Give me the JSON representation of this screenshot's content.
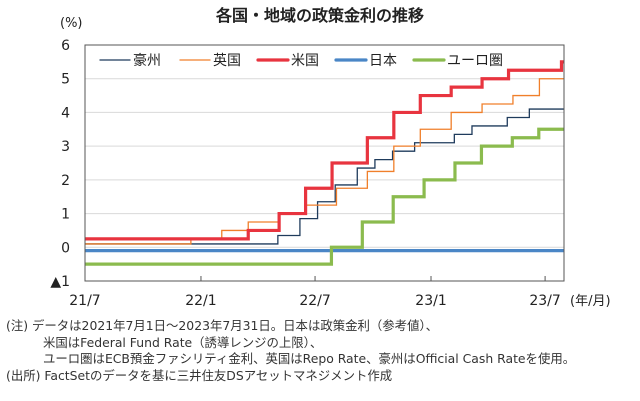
{
  "chart_data": {
    "type": "line",
    "title": "各国・地域の政策金利の推移",
    "ylabel": "(%)",
    "xlabel": "(年/月)",
    "ylim": [
      -1,
      6
    ],
    "yticks": [
      6,
      5,
      4,
      3,
      2,
      1,
      0,
      -1
    ],
    "ytick_labels": [
      "6",
      "5",
      "4",
      "3",
      "2",
      "1",
      "0",
      "▲1"
    ],
    "xrange": [
      "2021-07-01",
      "2023-07-31"
    ],
    "xticks": [
      "2021-07-01",
      "2022-01-01",
      "2022-07-01",
      "2023-01-01",
      "2023-07-01"
    ],
    "xtick_labels": [
      "21/7",
      "22/1",
      "22/7",
      "23/1",
      "23/7"
    ],
    "grid": true,
    "legend_position": "top-left",
    "step": true,
    "series": [
      {
        "name": "豪州",
        "color": "#1f3b5c",
        "width": 1.3,
        "points": [
          [
            "2021-07-01",
            0.1
          ],
          [
            "2022-05-03",
            0.35
          ],
          [
            "2022-06-07",
            0.85
          ],
          [
            "2022-07-05",
            1.35
          ],
          [
            "2022-08-02",
            1.85
          ],
          [
            "2022-09-06",
            2.35
          ],
          [
            "2022-10-04",
            2.6
          ],
          [
            "2022-11-01",
            2.85
          ],
          [
            "2022-12-06",
            3.1
          ],
          [
            "2023-02-07",
            3.35
          ],
          [
            "2023-03-07",
            3.6
          ],
          [
            "2023-05-02",
            3.85
          ],
          [
            "2023-06-06",
            4.1
          ]
        ]
      },
      {
        "name": "英国",
        "color": "#f07f2a",
        "width": 1.3,
        "points": [
          [
            "2021-07-01",
            0.1
          ],
          [
            "2021-12-16",
            0.25
          ],
          [
            "2022-02-03",
            0.5
          ],
          [
            "2022-03-17",
            0.75
          ],
          [
            "2022-05-05",
            1.0
          ],
          [
            "2022-06-16",
            1.25
          ],
          [
            "2022-08-04",
            1.75
          ],
          [
            "2022-09-22",
            2.25
          ],
          [
            "2022-11-03",
            3.0
          ],
          [
            "2022-12-15",
            3.5
          ],
          [
            "2023-02-02",
            4.0
          ],
          [
            "2023-03-23",
            4.25
          ],
          [
            "2023-05-11",
            4.5
          ],
          [
            "2023-06-22",
            5.0
          ]
        ]
      },
      {
        "name": "米国",
        "color": "#e8343f",
        "width": 3.2,
        "points": [
          [
            "2021-07-01",
            0.25
          ],
          [
            "2022-03-17",
            0.5
          ],
          [
            "2022-05-05",
            1.0
          ],
          [
            "2022-06-16",
            1.75
          ],
          [
            "2022-07-28",
            2.5
          ],
          [
            "2022-09-22",
            3.25
          ],
          [
            "2022-11-03",
            4.0
          ],
          [
            "2022-12-15",
            4.5
          ],
          [
            "2023-02-02",
            4.75
          ],
          [
            "2023-03-23",
            5.0
          ],
          [
            "2023-05-04",
            5.25
          ],
          [
            "2023-07-27",
            5.5
          ]
        ]
      },
      {
        "name": "日本",
        "color": "#4a86c6",
        "width": 3.2,
        "points": [
          [
            "2021-07-01",
            -0.1
          ]
        ]
      },
      {
        "name": "ユーロ圏",
        "color": "#8bbb4e",
        "width": 3.2,
        "points": [
          [
            "2021-07-01",
            -0.5
          ],
          [
            "2022-07-27",
            0.0
          ],
          [
            "2022-09-14",
            0.75
          ],
          [
            "2022-11-02",
            1.5
          ],
          [
            "2022-12-21",
            2.0
          ],
          [
            "2023-02-08",
            2.5
          ],
          [
            "2023-03-22",
            3.0
          ],
          [
            "2023-05-10",
            3.25
          ],
          [
            "2023-06-21",
            3.5
          ]
        ]
      }
    ]
  },
  "notes": {
    "line1": "(注) データは2021年7月1日～2023年7月31日。日本は政策金利（参考値）、",
    "line2": "米国はFederal Fund Rate（誘導レンジの上限）、",
    "line3": "ユーロ圏はECB預金ファシリティ金利、英国はRepo Rate、豪州はOfficial Cash Rateを使用。",
    "source": "(出所) FactSetのデータを基に三井住友DSアセットマネジメント作成"
  }
}
